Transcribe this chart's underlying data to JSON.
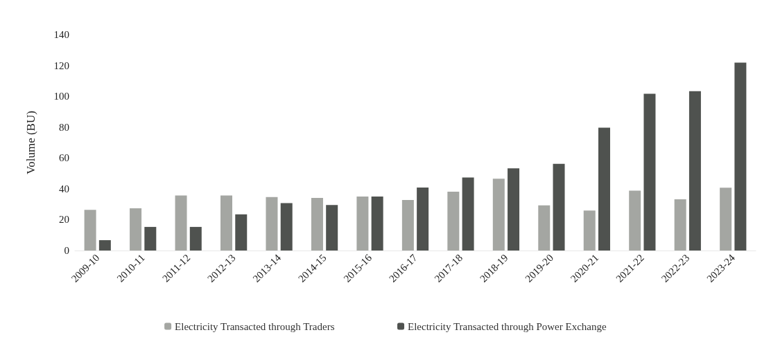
{
  "chart_data": {
    "type": "bar",
    "ylabel": "Volume (BU)",
    "categories": [
      "2009-10",
      "2010-11",
      "2011-12",
      "2012-13",
      "2013-14",
      "2014-15",
      "2015-16",
      "2016-17",
      "2017-18",
      "2018-19",
      "2019-20",
      "2020-21",
      "2021-22",
      "2022-23",
      "2023-24"
    ],
    "series": [
      {
        "name": "Electricity Transacted through Traders",
        "color": "#a4a6a2",
        "values": [
          26.4,
          27.4,
          35.7,
          35.7,
          34.7,
          34.1,
          35,
          32.8,
          38.1,
          46.5,
          29.3,
          25.9,
          38.8,
          33.2,
          40.7
        ]
      },
      {
        "name": "Electricity Transacted through Power Exchange",
        "color": "#4f524f",
        "values": [
          6.7,
          15.3,
          15.3,
          23.4,
          30.7,
          29.5,
          35,
          40.8,
          47.3,
          53.3,
          56.2,
          79.7,
          101.6,
          103.3,
          121.8
        ]
      }
    ],
    "ylim": [
      0,
      140
    ],
    "yticks": [
      0,
      20,
      40,
      60,
      80,
      100,
      120,
      140
    ],
    "grid": false,
    "legend": "bottom"
  }
}
